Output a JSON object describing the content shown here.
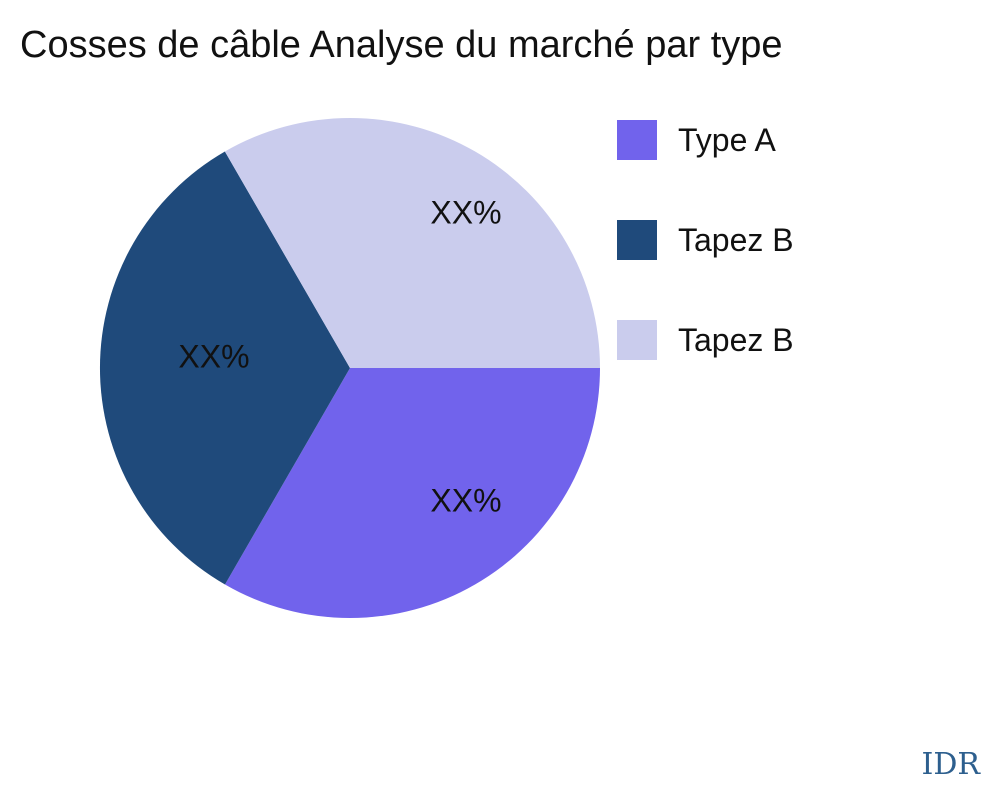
{
  "title": "Cosses de câble Analyse du marché par type",
  "watermark": "IDR",
  "colors": {
    "background": "#ffffff",
    "title_text": "#111111",
    "label_text": "#111111",
    "watermark_text": "#2d5f8e"
  },
  "chart_data": {
    "type": "pie",
    "title": "Cosses de câble Analyse du marché par type",
    "start_angle_deg": 0,
    "direction": "clockwise",
    "legend_position": "right",
    "slices": [
      {
        "label": "Type A",
        "display_label": "XX%",
        "value": 33.33,
        "color": "#7163ec"
      },
      {
        "label": "Tapez B",
        "display_label": "XX%",
        "value": 33.33,
        "color": "#1f4a7b"
      },
      {
        "label": "Tapez B",
        "display_label": "XX%",
        "value": 33.34,
        "color": "#cacced"
      }
    ]
  },
  "legend": {
    "items": [
      {
        "label": "Type A",
        "color": "#7163ec"
      },
      {
        "label": "Tapez B",
        "color": "#1f4a7b"
      },
      {
        "label": "Tapez B",
        "color": "#cacced"
      }
    ]
  }
}
